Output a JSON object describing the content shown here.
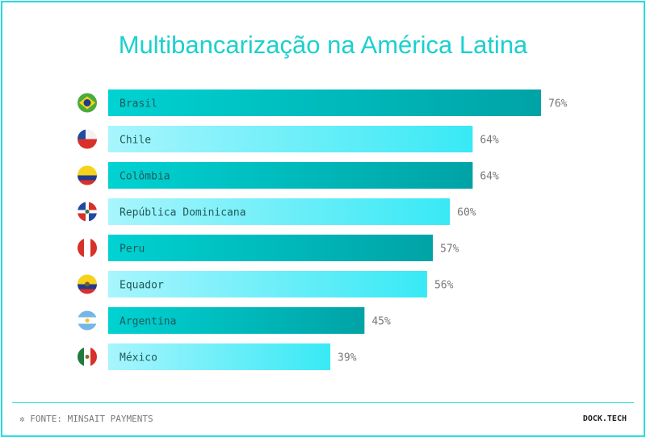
{
  "chart_data": {
    "type": "bar",
    "orientation": "horizontal",
    "title": "Multibancarização na América Latina",
    "categories": [
      "Brasil",
      "Chile",
      "Colômbia",
      "República Dominicana",
      "Peru",
      "Equador",
      "Argentina",
      "México"
    ],
    "values": [
      76,
      64,
      64,
      60,
      57,
      56,
      45,
      39
    ],
    "value_labels": [
      "76%",
      "64%",
      "64%",
      "60%",
      "57%",
      "56%",
      "45%",
      "39%"
    ],
    "flags": [
      "brazil-flag",
      "chile-flag",
      "colombia-flag",
      "dominican-republic-flag",
      "peru-flag",
      "ecuador-flag",
      "argentina-flag",
      "mexico-flag"
    ],
    "xlim": [
      0,
      76
    ],
    "colors": {
      "dark_start": "#00d2d2",
      "dark_end": "#00a3a6",
      "light_start": "#a8f5fd",
      "light_end": "#38e9f5"
    }
  },
  "footer": {
    "source": "FONTE: MINSAIT PAYMENTS",
    "brand": "DOCK.TECH",
    "source_icon": "asterisk-icon"
  }
}
